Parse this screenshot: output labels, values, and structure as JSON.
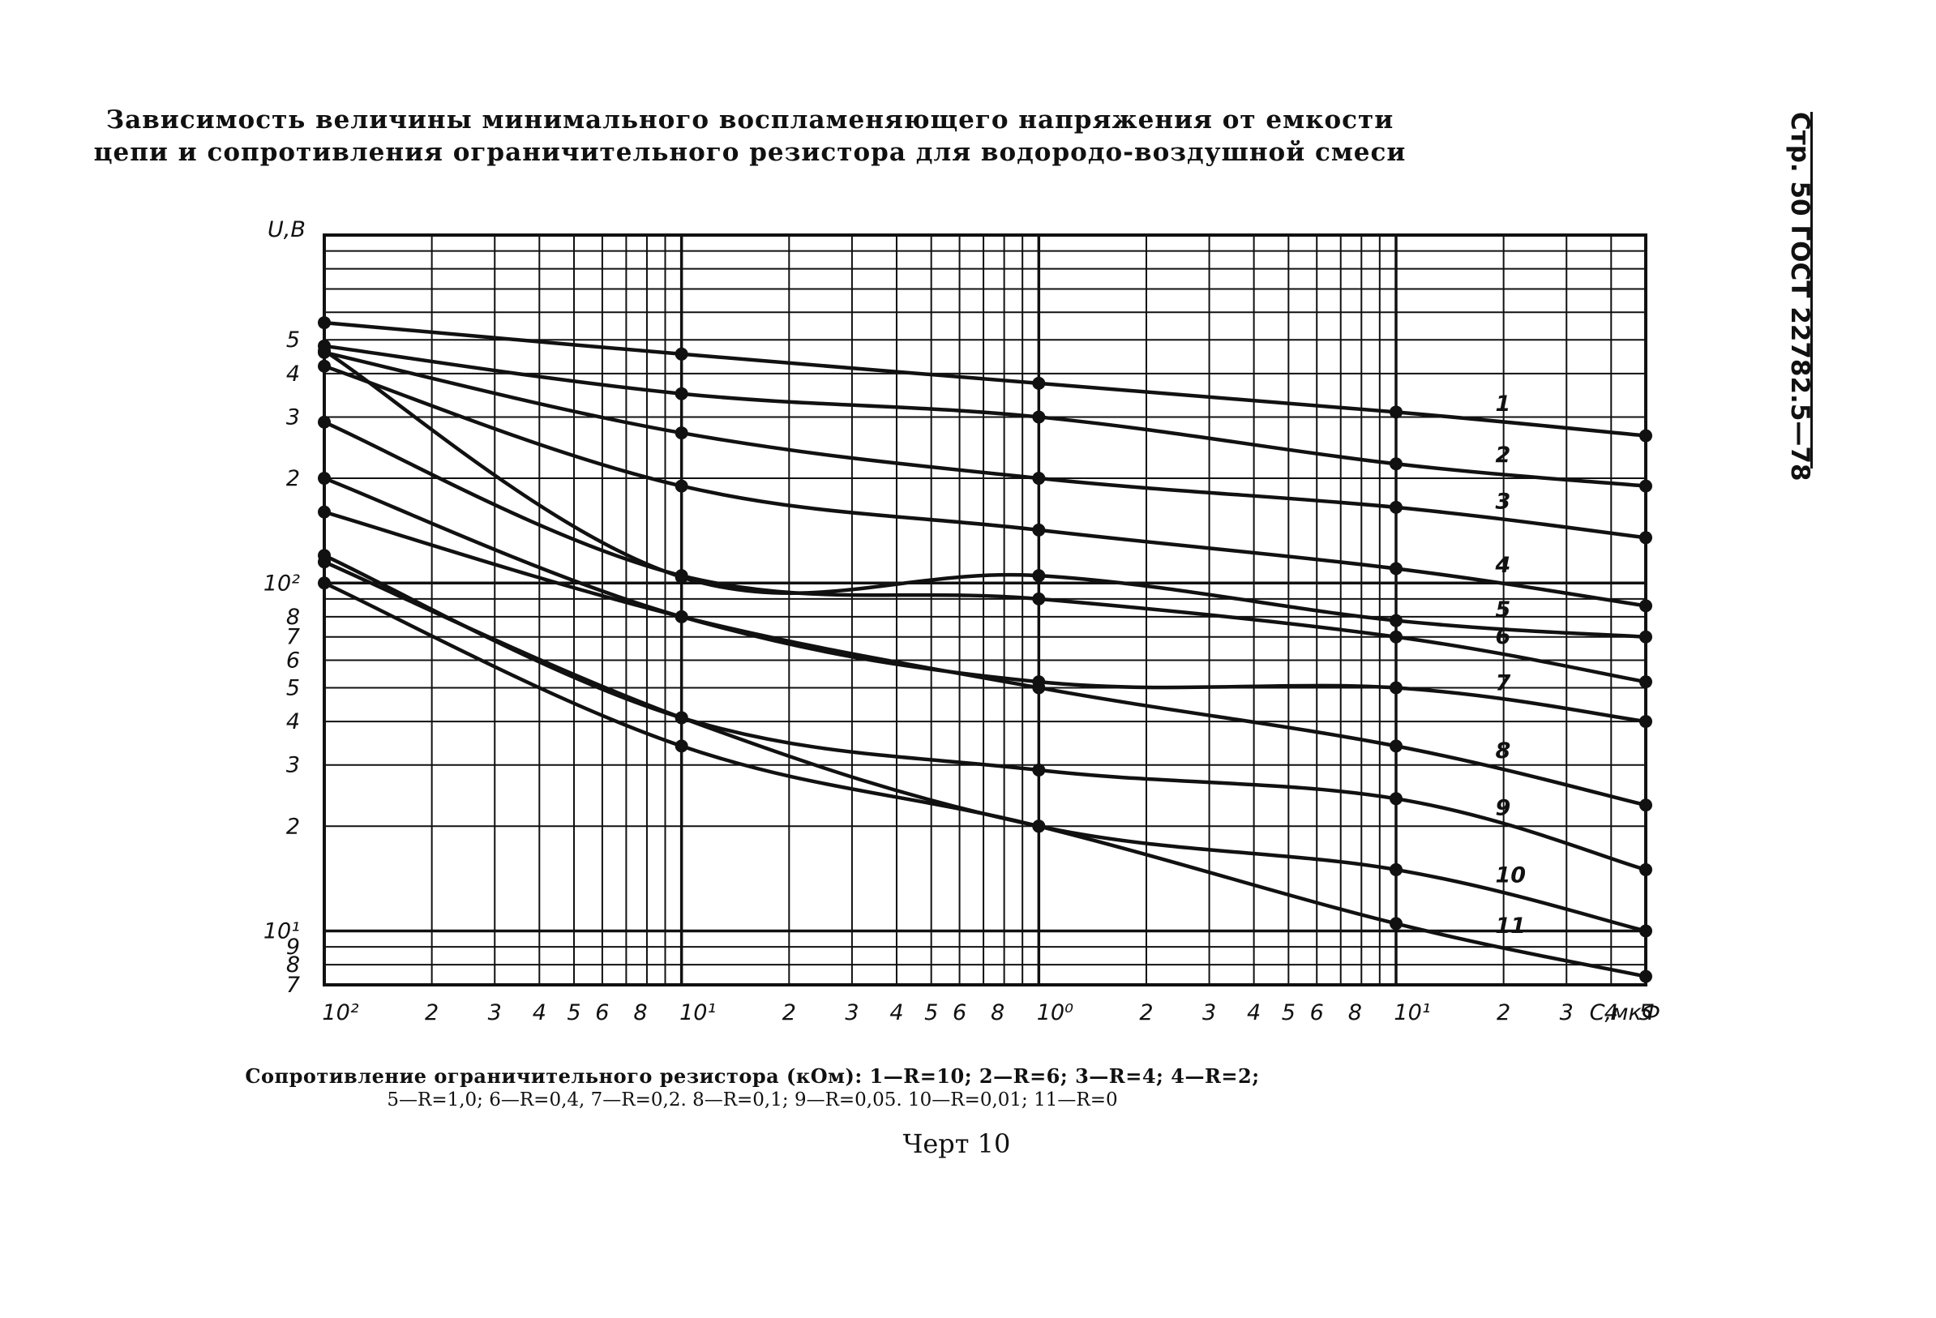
{
  "page": {
    "title_line1": "Зависимость величины минимального воспламеняющего напряжения от емкости",
    "title_line2": "цепи и сопротивления ограничительного резистора для водородо-воздушной смеси",
    "side_label": "Стр. 50 ГОСТ 22782.5—78",
    "legend_line1": "Сопротивление ограничительного резистора (кОм): 1—R=10; 2—R=6; 3—R=4; 4—R=2;",
    "legend_line2": "5—R=1,0; 6—R=0,4, 7—R=0,2. 8—R=0,1; 9—R=0,05. 10—R=0,01; 11—R=0",
    "caption": "Черт 10"
  },
  "chart_data": {
    "type": "line",
    "title": "Зависимость величины минимального воспламеняющего напряжения от емкости цепи и сопротивления ограничительного резистора для водородо-воздушной смеси",
    "xlabel": "C,мкФ",
    "ylabel": "U,В",
    "xscale": "log",
    "yscale": "log",
    "xlim": [
      0.01,
      50
    ],
    "ylim": [
      7,
      1000
    ],
    "x_tick_labels": [
      "10²",
      "2",
      "3",
      "4",
      "5",
      "6",
      "8",
      "10¹",
      "2",
      "3",
      "4",
      "5",
      "6",
      "8",
      "10⁰",
      "2",
      "3",
      "4",
      "5",
      "6",
      "8",
      "10¹",
      "2",
      "3",
      "4",
      "5",
      "C,мкФ"
    ],
    "y_tick_labels": [
      "5",
      "4",
      "3",
      "2",
      "10²",
      "8",
      "7",
      "6",
      "5",
      "4",
      "3",
      "2",
      "10¹",
      "9",
      "8",
      "7"
    ],
    "grid": true,
    "x": [
      0.01,
      0.1,
      1,
      10,
      50
    ],
    "series": [
      {
        "name": "1",
        "values": [
          560,
          455,
          375,
          310,
          265
        ]
      },
      {
        "name": "2",
        "values": [
          480,
          350,
          300,
          220,
          190
        ]
      },
      {
        "name": "3",
        "values": [
          460,
          270,
          200,
          165,
          135
        ]
      },
      {
        "name": "4",
        "values": [
          420,
          190,
          142,
          110,
          86
        ]
      },
      {
        "name": "5",
        "values": [
          465,
          104,
          105,
          78,
          70
        ]
      },
      {
        "name": "6",
        "values": [
          290,
          105,
          90,
          70,
          52
        ]
      },
      {
        "name": "7",
        "values": [
          200,
          80,
          52,
          50,
          40
        ]
      },
      {
        "name": "8",
        "values": [
          160,
          80,
          50,
          34,
          23
        ]
      },
      {
        "name": "9",
        "values": [
          120,
          41,
          29,
          24,
          15
        ]
      },
      {
        "name": "10",
        "values": [
          115,
          41,
          20,
          15,
          10
        ]
      },
      {
        "name": "11",
        "values": [
          100,
          34,
          20,
          10.5,
          7.4
        ]
      }
    ]
  }
}
